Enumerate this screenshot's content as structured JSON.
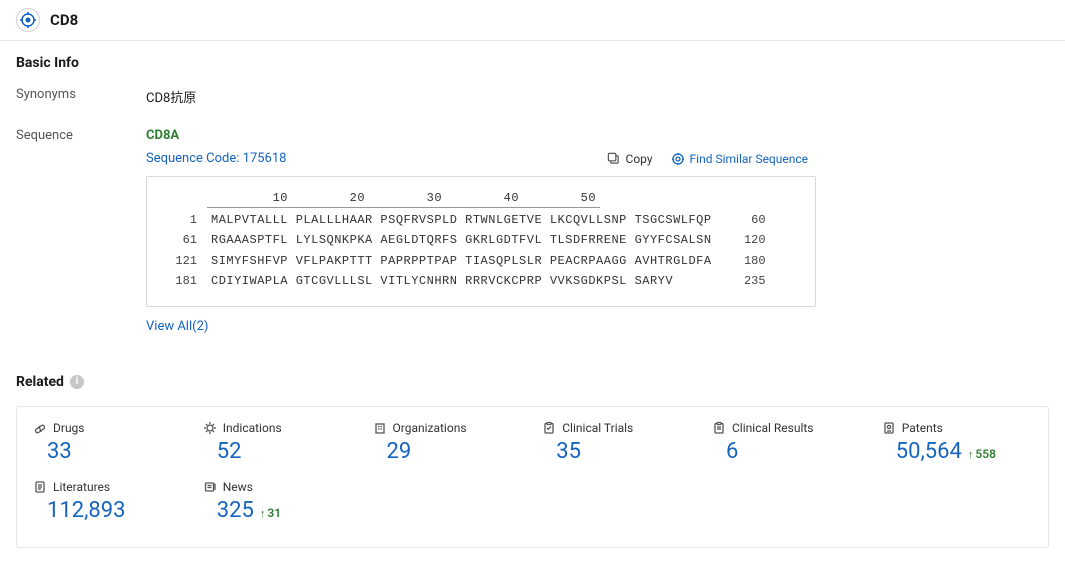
{
  "header": {
    "title": "CD8"
  },
  "basic_info": {
    "title": "Basic Info",
    "synonyms_label": "Synonyms",
    "synonyms_value": "CD8抗原",
    "sequence_label": "Sequence",
    "gene_name": "CD8A",
    "sequence_code": "Sequence Code: 175618",
    "copy_label": "Copy",
    "find_similar_label": "Find Similar Sequence",
    "ruler": "        10        20        30        40        50",
    "lines": [
      {
        "start": "1",
        "body": "MALPVTALLL PLALLLHAAR PSQFRVSPLD RTWNLGETVE LKCQVLLSNP TSGCSWLFQP",
        "end": "60"
      },
      {
        "start": "61",
        "body": "RGAAASPTFL LYLSQNKPKA AEGLDTQRFS GKRLGDTFVL TLSDFRRENE GYYFCSALSN",
        "end": "120"
      },
      {
        "start": "121",
        "body": "SIMYFSHFVP VFLPAKPTTT PAPRPPTPAP TIASQPLSLR PEACRPAAGG AVHTRGLDFA",
        "end": "180"
      },
      {
        "start": "181",
        "body": "CDIYIWAPLA GTCGVLLLSL VITLYCNHRN RRRVCKCPRP VVKSGDKPSL SARYV     ",
        "end": "235"
      }
    ],
    "view_all": "View All(2)"
  },
  "related": {
    "title": "Related",
    "stats": [
      {
        "icon": "drugs",
        "label": "Drugs",
        "value": "33",
        "delta": null
      },
      {
        "icon": "indications",
        "label": "Indications",
        "value": "52",
        "delta": null
      },
      {
        "icon": "orgs",
        "label": "Organizations",
        "value": "29",
        "delta": null
      },
      {
        "icon": "trials",
        "label": "Clinical Trials",
        "value": "35",
        "delta": null
      },
      {
        "icon": "results",
        "label": "Clinical Results",
        "value": "6",
        "delta": null
      },
      {
        "icon": "patents",
        "label": "Patents",
        "value": "50,564",
        "delta": "558"
      },
      {
        "icon": "lit",
        "label": "Literatures",
        "value": "112,893",
        "delta": null
      },
      {
        "icon": "news",
        "label": "News",
        "value": "325",
        "delta": "31"
      }
    ]
  },
  "colors": {
    "link": "#1565c0",
    "gene": "#2e7d32",
    "delta": "#2e7d32",
    "border": "#e5e5e5"
  }
}
